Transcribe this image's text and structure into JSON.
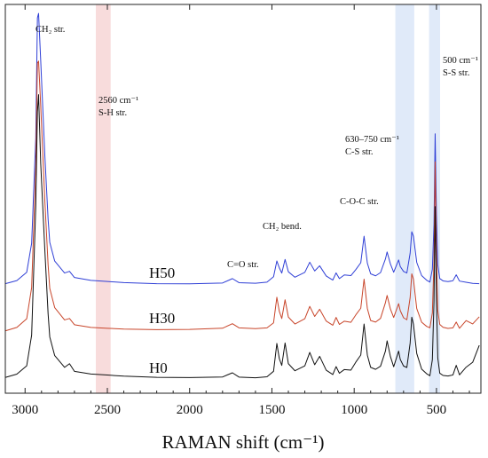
{
  "chart_data": {
    "type": "line",
    "xlabel": "RAMAN shift (cm⁻¹)",
    "x_reversed": true,
    "xlim": [
      3120,
      230
    ],
    "x_ticks": [
      3000,
      2500,
      2000,
      1500,
      1000,
      500
    ],
    "x_tick_labels": [
      "3000",
      "2500",
      "2000",
      "1500",
      "1000",
      "500"
    ],
    "y_axis_visible": false,
    "grid": false,
    "legend": "none",
    "bands": [
      {
        "x_from": 2570,
        "x_to": 2480,
        "color": "#f7d6d6"
      },
      {
        "x_from": 750,
        "x_to": 635,
        "color": "#dbe6f8"
      },
      {
        "x_from": 545,
        "x_to": 478,
        "color": "#dbe6f8"
      }
    ],
    "annotations": [
      {
        "lines": [
          "CH₂ str."
        ],
        "at_x": 2880
      },
      {
        "lines": [
          "2560 cm⁻¹",
          "S-H str."
        ],
        "at_x": 2500
      },
      {
        "lines": [
          "630–750 cm⁻¹",
          "C-S str."
        ],
        "at_x": 745
      },
      {
        "lines": [
          "500 cm⁻¹",
          "S-S str."
        ],
        "at_x": 480
      },
      {
        "lines": [
          "C-O-C str."
        ],
        "at_x": 940
      },
      {
        "lines": [
          "CH₂ bend."
        ],
        "at_x": 1460
      },
      {
        "lines": [
          "C=O str."
        ],
        "at_x": 1730
      }
    ],
    "series": [
      {
        "name": "H50",
        "color": "#2f3fd6",
        "baseline": 0.0,
        "x": [
          3120,
          3050,
          2990,
          2960,
          2935,
          2925,
          2918,
          2905,
          2880,
          2860,
          2850,
          2820,
          2760,
          2730,
          2700,
          2600,
          2500,
          2400,
          2200,
          2000,
          1800,
          1740,
          1700,
          1600,
          1530,
          1490,
          1470,
          1455,
          1440,
          1420,
          1400,
          1360,
          1300,
          1270,
          1240,
          1210,
          1170,
          1130,
          1110,
          1090,
          1060,
          1020,
          990,
          960,
          940,
          920,
          900,
          870,
          840,
          810,
          800,
          780,
          760,
          730,
          720,
          700,
          680,
          660,
          650,
          640,
          620,
          590,
          560,
          540,
          525,
          515,
          508,
          500,
          492,
          480,
          460,
          430,
          400,
          380,
          360,
          320,
          280,
          240
        ],
        "y": [
          0,
          4,
          14,
          48,
          170,
          310,
          315,
          260,
          150,
          75,
          48,
          26,
          12,
          14,
          7,
          4,
          3,
          2,
          1,
          1,
          2,
          7,
          2,
          1,
          2,
          8,
          26,
          18,
          12,
          28,
          14,
          8,
          14,
          26,
          16,
          22,
          10,
          5,
          13,
          6,
          10,
          9,
          16,
          24,
          55,
          24,
          12,
          10,
          14,
          30,
          38,
          24,
          14,
          28,
          20,
          14,
          12,
          35,
          60,
          55,
          25,
          10,
          5,
          3,
          18,
          70,
          175,
          80,
          22,
          6,
          3,
          2,
          3,
          10,
          3,
          2,
          1,
          1
        ]
      },
      {
        "name": "H30",
        "color": "#c8452a",
        "baseline": -60.0,
        "x": [
          3120,
          3050,
          2990,
          2960,
          2935,
          2925,
          2918,
          2905,
          2880,
          2860,
          2850,
          2820,
          2760,
          2730,
          2700,
          2600,
          2500,
          2400,
          2200,
          2000,
          1800,
          1740,
          1700,
          1600,
          1530,
          1490,
          1470,
          1455,
          1440,
          1420,
          1400,
          1360,
          1300,
          1270,
          1240,
          1210,
          1170,
          1130,
          1110,
          1090,
          1060,
          1020,
          990,
          960,
          940,
          920,
          900,
          870,
          840,
          810,
          800,
          780,
          760,
          730,
          720,
          700,
          680,
          660,
          650,
          640,
          620,
          590,
          560,
          540,
          525,
          515,
          508,
          500,
          492,
          480,
          460,
          430,
          400,
          380,
          360,
          320,
          280,
          240
        ],
        "y": [
          0,
          4,
          14,
          50,
          190,
          310,
          312,
          260,
          150,
          75,
          48,
          26,
          12,
          14,
          7,
          4,
          3,
          2,
          1,
          1,
          2,
          7,
          2,
          1,
          2,
          8,
          38,
          22,
          14,
          36,
          16,
          8,
          14,
          28,
          16,
          24,
          10,
          5,
          14,
          6,
          10,
          9,
          18,
          26,
          60,
          26,
          12,
          10,
          14,
          32,
          40,
          24,
          14,
          30,
          22,
          14,
          12,
          38,
          66,
          60,
          26,
          10,
          5,
          3,
          20,
          80,
          195,
          85,
          22,
          6,
          3,
          2,
          3,
          10,
          3,
          12,
          8,
          16
        ]
      },
      {
        "name": "H0",
        "color": "#111111",
        "baseline": -115.0,
        "x": [
          3120,
          3050,
          2990,
          2960,
          2935,
          2925,
          2918,
          2905,
          2880,
          2860,
          2850,
          2820,
          2760,
          2730,
          2700,
          2600,
          2500,
          2400,
          2200,
          2000,
          1800,
          1740,
          1700,
          1600,
          1530,
          1490,
          1470,
          1455,
          1440,
          1420,
          1400,
          1360,
          1300,
          1270,
          1240,
          1210,
          1170,
          1130,
          1110,
          1090,
          1060,
          1020,
          990,
          960,
          940,
          920,
          900,
          870,
          840,
          810,
          800,
          780,
          760,
          730,
          720,
          700,
          680,
          660,
          650,
          640,
          620,
          590,
          560,
          540,
          525,
          515,
          508,
          500,
          492,
          480,
          460,
          430,
          400,
          380,
          360,
          320,
          280,
          240
        ],
        "y": [
          0,
          4,
          14,
          50,
          200,
          310,
          330,
          250,
          150,
          75,
          48,
          26,
          12,
          16,
          7,
          4,
          3,
          2,
          1,
          1,
          2,
          7,
          2,
          1,
          2,
          8,
          40,
          22,
          14,
          40,
          16,
          8,
          14,
          30,
          16,
          26,
          10,
          5,
          14,
          6,
          10,
          9,
          18,
          26,
          62,
          26,
          12,
          10,
          14,
          32,
          44,
          26,
          14,
          32,
          22,
          14,
          12,
          40,
          70,
          62,
          28,
          10,
          5,
          3,
          22,
          90,
          200,
          90,
          24,
          6,
          3,
          2,
          3,
          14,
          3,
          12,
          18,
          38
        ]
      }
    ]
  }
}
